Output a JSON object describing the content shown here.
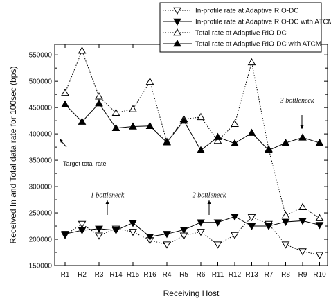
{
  "chart_data": {
    "type": "line",
    "xlabel": "Receiving Host",
    "ylabel": "Received In and Total data rate for 100sec (bps)",
    "categories": [
      "R1",
      "R2",
      "R3",
      "R14",
      "R15",
      "R16",
      "R4",
      "R5",
      "R6",
      "R11",
      "R12",
      "R13",
      "R7",
      "R8",
      "R9",
      "R10"
    ],
    "yticks": [
      "150000",
      "200000",
      "250000",
      "300000",
      "350000",
      "400000",
      "450000",
      "500000",
      "550000"
    ],
    "ylim": [
      150000,
      570000
    ],
    "grid": false,
    "legend_position": "top-right",
    "series": [
      {
        "name": "In-profile rate at Adaptive RIO-DC",
        "marker": "triangle-down-open",
        "line": "dotted",
        "values": [
          208000,
          229000,
          207000,
          220000,
          214000,
          198000,
          190000,
          207000,
          214000,
          190000,
          208000,
          242000,
          229000,
          190000,
          177000,
          170000
        ]
      },
      {
        "name": "In-profile rate at Adaptive RIO-DC with ATCM",
        "marker": "triangle-down-filled",
        "line": "solid",
        "values": [
          210000,
          217000,
          220000,
          217000,
          231000,
          205000,
          210000,
          218000,
          232000,
          232000,
          243000,
          225000,
          225000,
          233000,
          235000,
          227000
        ]
      },
      {
        "name": "Total rate at Adaptive RIO-DC",
        "marker": "triangle-up-open",
        "line": "dotted",
        "values": [
          478000,
          558000,
          471000,
          440000,
          447000,
          499000,
          385000,
          428000,
          432000,
          387000,
          419000,
          536000,
          371000,
          245000,
          261000,
          240000
        ]
      },
      {
        "name": "Total rate at Adaptive RIO-DC with ATCM",
        "marker": "triangle-up-filled",
        "line": "solid",
        "values": [
          456000,
          423000,
          458000,
          411000,
          414000,
          415000,
          384000,
          425000,
          369000,
          394000,
          382000,
          402000,
          369000,
          383000,
          393000,
          383000
        ]
      }
    ],
    "annotations": [
      {
        "text": "Target total rate",
        "x_category": "R1",
        "y": 358000
      },
      {
        "text": "1 bottleneck",
        "x_category": "R3",
        "y": 285000
      },
      {
        "text": "2 bottleneck",
        "x_category": "R6",
        "y": 285000
      },
      {
        "text": "3 bottleneck",
        "x_category": "R9",
        "y": 465000
      }
    ]
  }
}
